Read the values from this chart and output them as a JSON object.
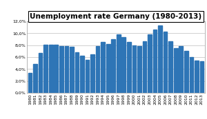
{
  "title": "Unemployment rate Germany (1980-2013)",
  "years": [
    1980,
    1981,
    1982,
    1983,
    1984,
    1985,
    1986,
    1987,
    1988,
    1989,
    1990,
    1991,
    1992,
    1993,
    1994,
    1995,
    1996,
    1997,
    1998,
    1999,
    2000,
    2001,
    2002,
    2003,
    2004,
    2005,
    2006,
    2007,
    2008,
    2009,
    2010,
    2011,
    2012,
    2013
  ],
  "values": [
    3.4,
    4.8,
    6.7,
    8.1,
    8.1,
    8.1,
    7.9,
    7.9,
    7.7,
    6.8,
    6.2,
    5.5,
    6.5,
    7.9,
    8.5,
    8.2,
    9.0,
    9.8,
    9.4,
    8.6,
    8.0,
    7.9,
    8.7,
    9.8,
    10.6,
    11.3,
    10.3,
    8.7,
    7.5,
    7.8,
    7.1,
    6.0,
    5.4,
    5.3
  ],
  "bar_color": "#2E75B6",
  "bg_color": "#FFFFFF",
  "grid_color": "#BEBEBE",
  "ylim": [
    0,
    12.0
  ],
  "yticks": [
    0.0,
    2.0,
    4.0,
    6.0,
    8.0,
    10.0,
    12.0
  ],
  "ytick_labels": [
    "0,0%",
    "2,0%",
    "4,0%",
    "6,0%",
    "8,0%",
    "10,0%",
    "12,0%"
  ],
  "title_fontsize": 7.5,
  "tick_fontsize": 4.5,
  "bar_width": 0.75,
  "figsize": [
    3.0,
    1.73
  ],
  "dpi": 100
}
